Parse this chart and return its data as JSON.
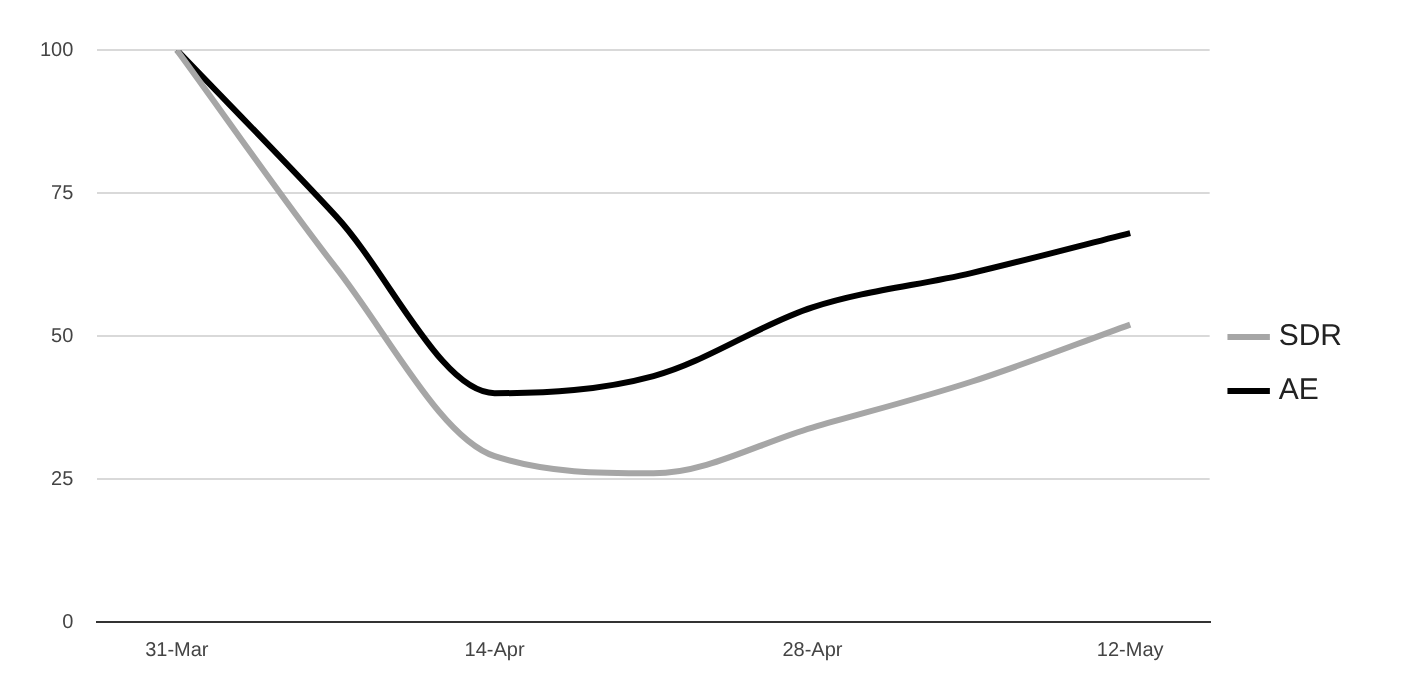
{
  "chart_data": {
    "type": "line",
    "categories": [
      "31-Mar",
      null,
      "14-Apr",
      null,
      "28-Apr",
      null,
      "12-May"
    ],
    "series": [
      {
        "name": "SDR",
        "color": "#a6a6a6",
        "values": [
          100,
          62,
          29,
          26,
          34,
          42,
          52
        ]
      },
      {
        "name": "AE",
        "color": "#000000",
        "values": [
          100,
          71,
          40,
          43,
          55,
          61,
          68
        ]
      }
    ],
    "ylim": [
      0,
      100
    ],
    "yticks": [
      0,
      25,
      50,
      75,
      100
    ],
    "grid": "y",
    "legend": "right",
    "marker": "none",
    "line_style": "solid"
  }
}
